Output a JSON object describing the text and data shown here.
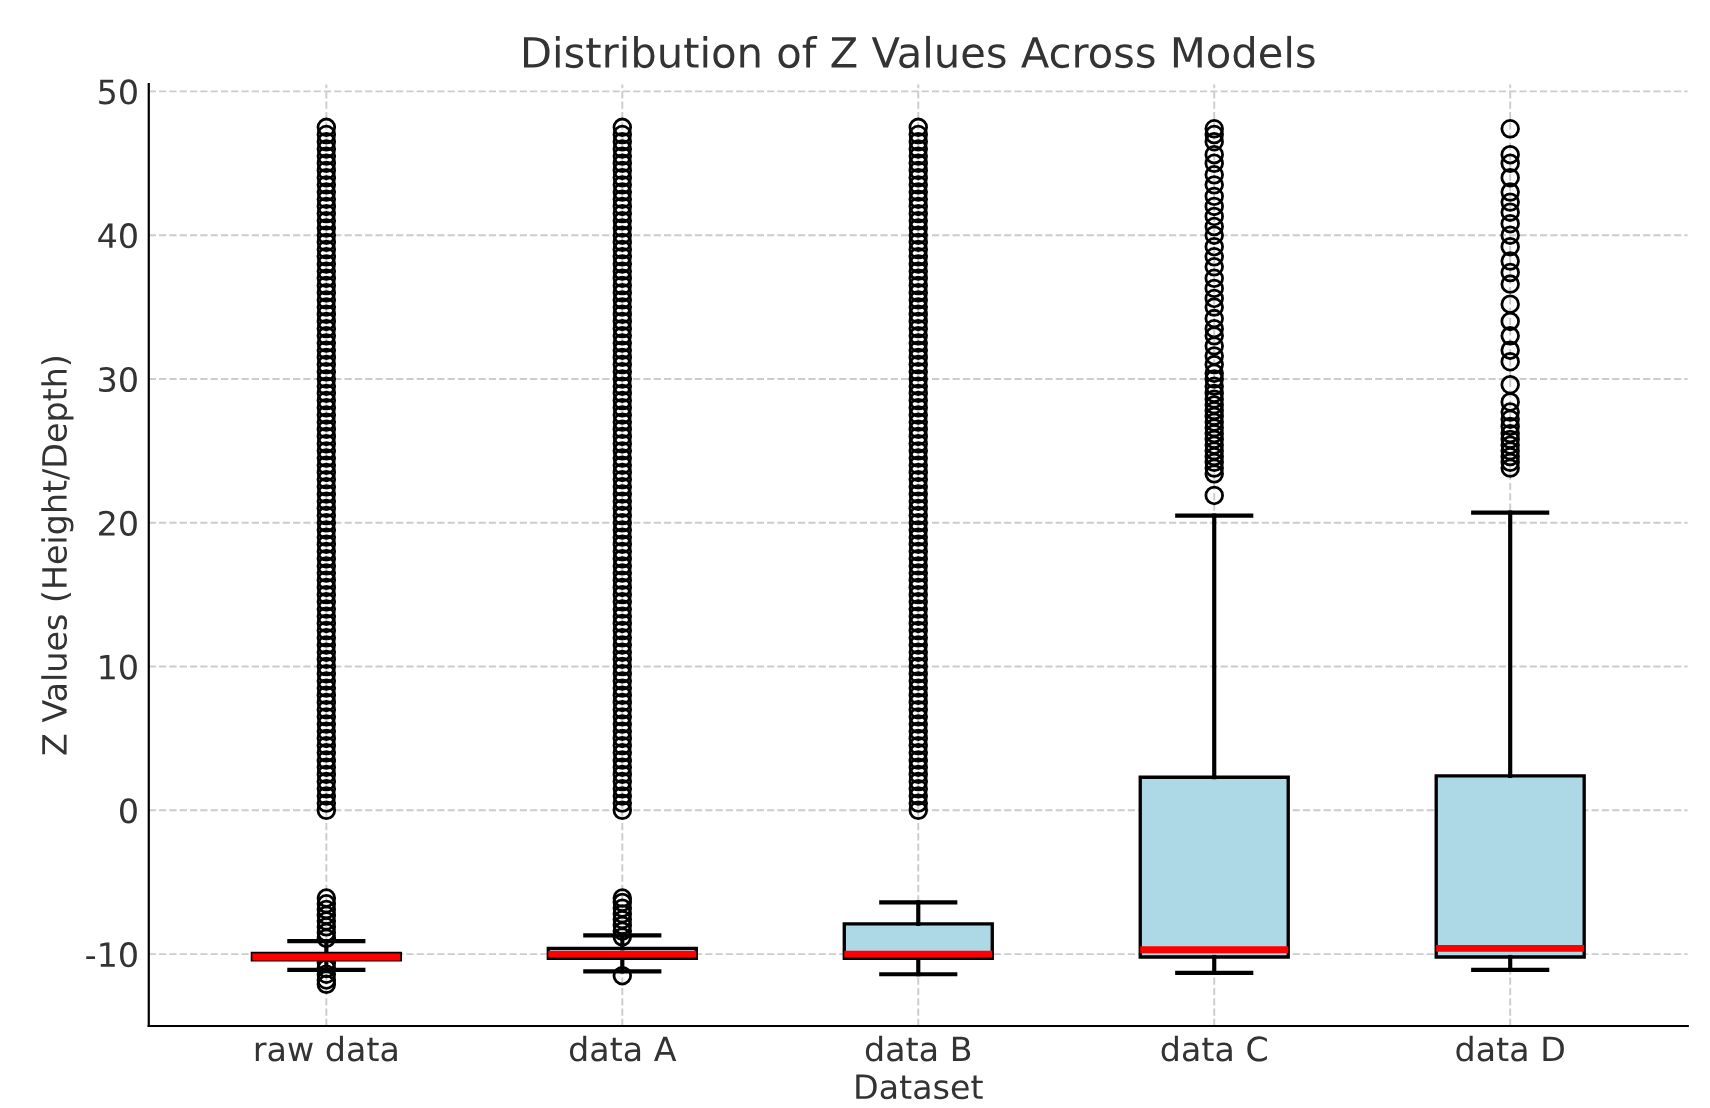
{
  "chart_data": {
    "type": "box",
    "title": "Distribution of Z Values Across Models",
    "xlabel": "Dataset",
    "ylabel": "Z Values (Height/Depth)",
    "categories": [
      "raw data",
      "data A",
      "data B",
      "data C",
      "data D"
    ],
    "ylim": [
      -15,
      50.5
    ],
    "yticks": [
      -10,
      0,
      10,
      20,
      30,
      40,
      50
    ],
    "grid": true,
    "series": [
      {
        "color": "#add8e6",
        "boxes": [
          {
            "low": -11.1,
            "q1": -10.4,
            "median": -10.2,
            "q3": -9.95,
            "high": -9.1,
            "outliers": [
              -12.1,
              -11.8,
              -11.4,
              -11.0,
              -10.6,
              -8.9,
              -8.5,
              -8.1,
              -7.7,
              -7.3,
              -6.9,
              -6.5,
              -6.1,
              0,
              0.5,
              1,
              1.5,
              2,
              2.5,
              3,
              3.5,
              4,
              4.5,
              5,
              5.5,
              6,
              6.5,
              7,
              7.5,
              8,
              8.5,
              9,
              9.5,
              10,
              10.5,
              11,
              11.5,
              12,
              12.5,
              13,
              13.5,
              14,
              14.5,
              15,
              15.5,
              16,
              16.5,
              17,
              17.5,
              18,
              18.5,
              19,
              19.5,
              20,
              20.5,
              21,
              21.5,
              22,
              22.5,
              23,
              23.5,
              24,
              24.5,
              25,
              25.5,
              26,
              26.5,
              27,
              27.5,
              28,
              28.5,
              29,
              29.5,
              30,
              30.5,
              31,
              31.5,
              32,
              32.5,
              33,
              33.5,
              34,
              34.5,
              35,
              35.5,
              36,
              36.5,
              37,
              37.5,
              38,
              38.5,
              39,
              39.5,
              40,
              40.5,
              41,
              41.5,
              42,
              42.5,
              43,
              43.5,
              44,
              44.5,
              45,
              45.5,
              46,
              46.5,
              47,
              47.5
            ]
          },
          {
            "low": -11.2,
            "q1": -10.3,
            "median": -10.0,
            "q3": -9.6,
            "high": -8.7,
            "outliers": [
              -11.5,
              -8.8,
              -8.4,
              -8.0,
              -7.6,
              -7.2,
              -6.8,
              -6.4,
              -6.1,
              0,
              0.5,
              1,
              1.5,
              2,
              2.5,
              3,
              3.5,
              4,
              4.5,
              5,
              5.5,
              6,
              6.5,
              7,
              7.5,
              8,
              8.5,
              9,
              9.5,
              10,
              10.5,
              11,
              11.5,
              12,
              12.5,
              13,
              13.5,
              14,
              14.5,
              15,
              15.5,
              16,
              16.5,
              17,
              17.5,
              18,
              18.5,
              19,
              19.5,
              20,
              20.5,
              21,
              21.5,
              22,
              22.5,
              23,
              23.5,
              24,
              24.5,
              25,
              25.5,
              26,
              26.5,
              27,
              27.5,
              28,
              28.5,
              29,
              29.5,
              30,
              30.5,
              31,
              31.5,
              32,
              32.5,
              33,
              33.5,
              34,
              34.5,
              35,
              35.5,
              36,
              36.5,
              37,
              37.5,
              38,
              38.5,
              39,
              39.5,
              40,
              40.5,
              41,
              41.5,
              42,
              42.5,
              43,
              43.5,
              44,
              44.5,
              45,
              45.5,
              46,
              46.5,
              47,
              47.5
            ]
          },
          {
            "low": -11.4,
            "q1": -10.3,
            "median": -10.0,
            "q3": -7.9,
            "high": -6.4,
            "outliers": [
              0,
              0.5,
              1,
              1.5,
              2,
              2.5,
              3,
              3.5,
              4,
              4.5,
              5,
              5.5,
              6,
              6.5,
              7,
              7.5,
              8,
              8.5,
              9,
              9.5,
              10,
              10.5,
              11,
              11.5,
              12,
              12.5,
              13,
              13.5,
              14,
              14.5,
              15,
              15.5,
              16,
              16.5,
              17,
              17.5,
              18,
              18.5,
              19,
              19.5,
              20,
              20.5,
              21,
              21.5,
              22,
              22.5,
              23,
              23.5,
              24,
              24.5,
              25,
              25.5,
              26,
              26.5,
              27,
              27.5,
              28,
              28.5,
              29,
              29.5,
              30,
              30.5,
              31,
              31.5,
              32,
              32.5,
              33,
              33.5,
              34,
              34.5,
              35,
              35.5,
              36,
              36.5,
              37,
              37.5,
              38,
              38.5,
              39,
              39.5,
              40,
              40.5,
              41,
              41.5,
              42,
              42.5,
              43,
              43.5,
              44,
              44.5,
              45,
              45.5,
              46,
              46.5,
              47,
              47.5
            ]
          },
          {
            "low": -11.3,
            "q1": -10.2,
            "median": -9.7,
            "q3": 2.3,
            "high": 20.5,
            "outliers": [
              21.9,
              23.4,
              23.8,
              24.2,
              24.6,
              25,
              25.4,
              25.8,
              26.2,
              26.6,
              27,
              27.4,
              27.8,
              28.2,
              28.6,
              29,
              29.5,
              30,
              30.4,
              31,
              31.6,
              32.3,
              33,
              33.5,
              34.2,
              35,
              35.6,
              36.3,
              37,
              37.8,
              38.5,
              39.2,
              40,
              40.6,
              41.3,
              42,
              42.7,
              43.5,
              44.2,
              45,
              45.6,
              46.5,
              47,
              47.4
            ]
          },
          {
            "low": -11.1,
            "q1": -10.2,
            "median": -9.6,
            "q3": 2.4,
            "high": 20.7,
            "outliers": [
              23.8,
              24.2,
              24.6,
              25,
              25.4,
              25.8,
              26.2,
              26.7,
              27.2,
              27.7,
              28.4,
              29.6,
              31.2,
              32,
              33,
              34,
              35.2,
              36.6,
              37.4,
              38.2,
              39.2,
              40,
              40.8,
              41.6,
              42.3,
              43,
              44,
              45,
              45.6,
              47.4
            ]
          }
        ]
      }
    ]
  }
}
